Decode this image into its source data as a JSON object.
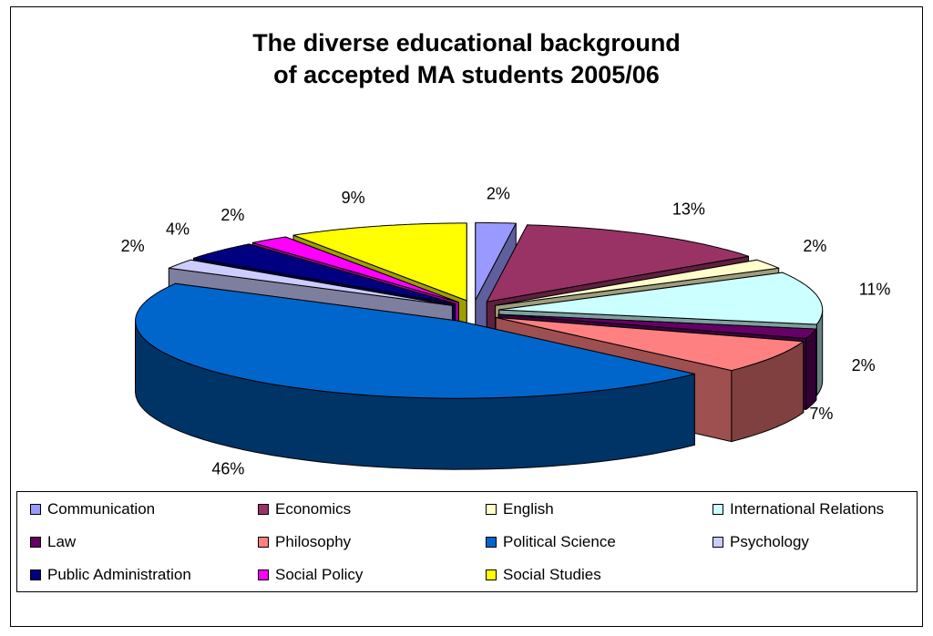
{
  "chart_data": {
    "type": "pie",
    "title_lines": [
      "The diverse educational background",
      "of accepted MA students 2005/06"
    ],
    "categories": [
      "Communication",
      "Economics",
      "English",
      "International Relations",
      "Law",
      "Philosophy",
      "Political Science",
      "Psychology",
      "Public Administration",
      "Social Policy",
      "Social Studies"
    ],
    "values": [
      2,
      13,
      2,
      11,
      2,
      7,
      46,
      2,
      4,
      2,
      9
    ],
    "value_labels": [
      "2%",
      "13%",
      "2%",
      "11%",
      "2%",
      "7%",
      "46%",
      "2%",
      "4%",
      "2%",
      "9%"
    ],
    "colors": [
      "#9999FF",
      "#993366",
      "#FFFFCC",
      "#CCFFFF",
      "#660066",
      "#FF8080",
      "#0066CC",
      "#CCCCFF",
      "#000080",
      "#FF00FF",
      "#FFFF00"
    ],
    "exploded": true,
    "three_d": true,
    "legend_position": "bottom"
  }
}
